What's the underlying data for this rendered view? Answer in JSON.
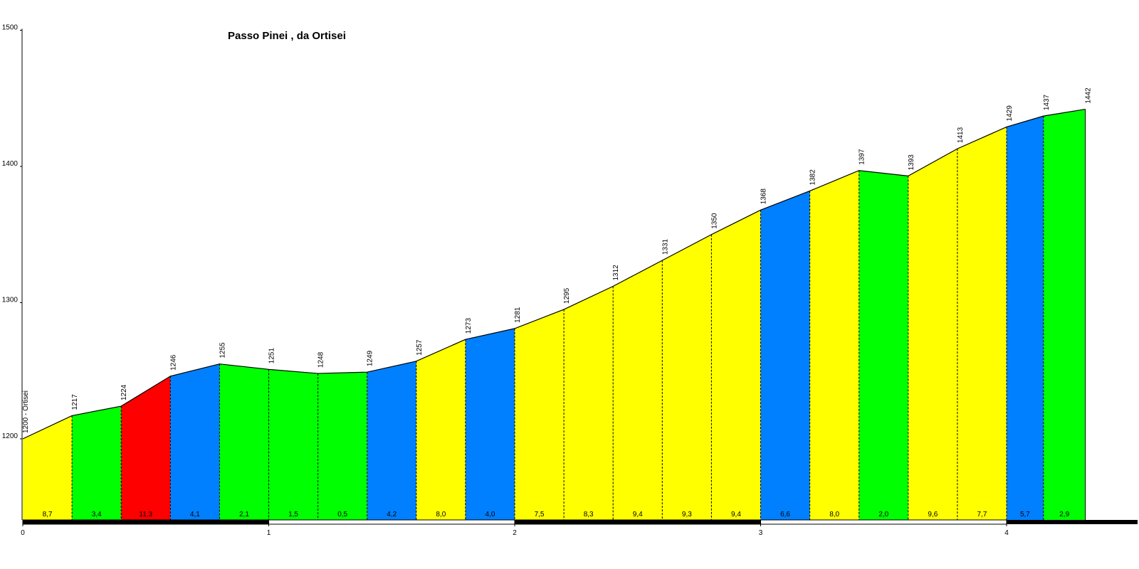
{
  "chart_data": {
    "type": "area",
    "title": "Passo Pinei , da Ortisei",
    "xlabel": "",
    "ylabel": "",
    "xlim": [
      0,
      4.6
    ],
    "ylim": [
      1140,
      1500
    ],
    "x_ticks": [
      "0",
      "1",
      "2",
      "3",
      "4"
    ],
    "y_ticks": [
      "1200",
      "1300",
      "1400",
      "1500"
    ],
    "points": [
      {
        "x": 0.0,
        "y": 1200,
        "label": "1200 - Ortisei"
      },
      {
        "x": 0.2,
        "y": 1217,
        "label": "1217"
      },
      {
        "x": 0.4,
        "y": 1224,
        "label": "1224"
      },
      {
        "x": 0.6,
        "y": 1246,
        "label": "1246"
      },
      {
        "x": 0.8,
        "y": 1255,
        "label": "1255"
      },
      {
        "x": 1.0,
        "y": 1251,
        "label": "1251"
      },
      {
        "x": 1.2,
        "y": 1248,
        "label": "1248"
      },
      {
        "x": 1.4,
        "y": 1249,
        "label": "1249"
      },
      {
        "x": 1.6,
        "y": 1257,
        "label": "1257"
      },
      {
        "x": 1.8,
        "y": 1273,
        "label": "1273"
      },
      {
        "x": 2.0,
        "y": 1281,
        "label": "1281"
      },
      {
        "x": 2.2,
        "y": 1295,
        "label": "1295"
      },
      {
        "x": 2.4,
        "y": 1312,
        "label": "1312"
      },
      {
        "x": 2.6,
        "y": 1331,
        "label": "1331"
      },
      {
        "x": 2.8,
        "y": 1350,
        "label": "1350"
      },
      {
        "x": 3.0,
        "y": 1368,
        "label": "1368"
      },
      {
        "x": 3.2,
        "y": 1382,
        "label": "1382"
      },
      {
        "x": 3.4,
        "y": 1397,
        "label": "1397"
      },
      {
        "x": 3.6,
        "y": 1393,
        "label": "1393"
      },
      {
        "x": 3.8,
        "y": 1413,
        "label": "1413"
      },
      {
        "x": 4.0,
        "y": 1429,
        "label": "1429"
      },
      {
        "x": 4.15,
        "y": 1437,
        "label": "1437"
      },
      {
        "x": 4.32,
        "y": 1442,
        "label": "1442"
      }
    ],
    "segments": [
      {
        "grade": "8,7",
        "color": "#ffff00"
      },
      {
        "grade": "3,4",
        "color": "#00ff00"
      },
      {
        "grade": "11,3",
        "color": "#ff0000"
      },
      {
        "grade": "4,1",
        "color": "#0080ff"
      },
      {
        "grade": "2,1",
        "color": "#00ff00"
      },
      {
        "grade": "1,5",
        "color": "#00ff00"
      },
      {
        "grade": "0,5",
        "color": "#00ff00"
      },
      {
        "grade": "4,2",
        "color": "#0080ff"
      },
      {
        "grade": "8,0",
        "color": "#ffff00"
      },
      {
        "grade": "4,0",
        "color": "#0080ff"
      },
      {
        "grade": "7,5",
        "color": "#ffff00"
      },
      {
        "grade": "8,3",
        "color": "#ffff00"
      },
      {
        "grade": "9,4",
        "color": "#ffff00"
      },
      {
        "grade": "9,3",
        "color": "#ffff00"
      },
      {
        "grade": "9,4",
        "color": "#ffff00"
      },
      {
        "grade": "6,6",
        "color": "#0080ff"
      },
      {
        "grade": "8,0",
        "color": "#ffff00"
      },
      {
        "grade": "2,0",
        "color": "#00ff00"
      },
      {
        "grade": "9,6",
        "color": "#ffff00"
      },
      {
        "grade": "7,7",
        "color": "#ffff00"
      },
      {
        "grade": "5,7",
        "color": "#0080ff"
      },
      {
        "grade": "2,9",
        "color": "#00ff00"
      }
    ],
    "grid": false,
    "legend": "none"
  }
}
